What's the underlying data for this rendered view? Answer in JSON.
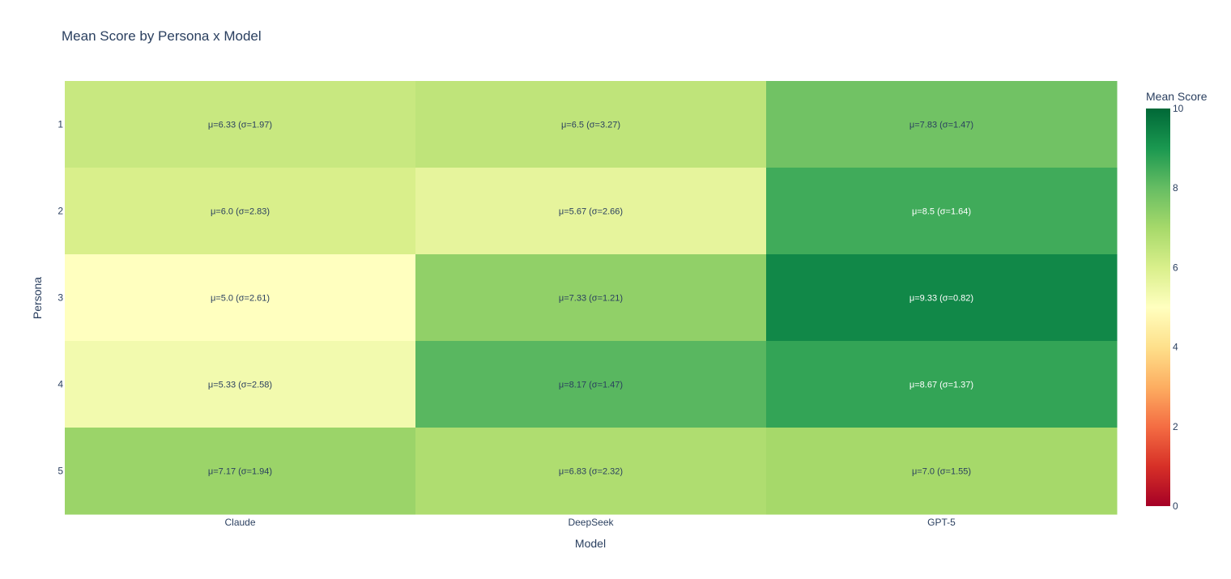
{
  "chart_data": {
    "type": "heatmap",
    "title": "Mean Score by Persona x Model",
    "xlabel": "Model",
    "ylabel": "Persona",
    "x": [
      "Claude",
      "DeepSeek",
      "GPT-5"
    ],
    "y": [
      "1",
      "2",
      "3",
      "4",
      "5"
    ],
    "z": [
      [
        6.33,
        6.5,
        7.83
      ],
      [
        6.0,
        5.67,
        8.5
      ],
      [
        5.0,
        7.33,
        9.33
      ],
      [
        5.33,
        8.17,
        8.67
      ],
      [
        7.17,
        6.83,
        7.0
      ]
    ],
    "cell_text": [
      [
        "μ=6.33 (σ=1.97)",
        "μ=6.5 (σ=3.27)",
        "μ=7.83 (σ=1.47)"
      ],
      [
        "μ=6.0 (σ=2.83)",
        "μ=5.67 (σ=2.66)",
        "μ=8.5 (σ=1.64)"
      ],
      [
        "μ=5.0 (σ=2.61)",
        "μ=7.33 (σ=1.21)",
        "μ=9.33 (σ=0.82)"
      ],
      [
        "μ=5.33 (σ=2.58)",
        "μ=8.17 (σ=1.47)",
        "μ=8.67 (σ=1.37)"
      ],
      [
        "μ=7.17 (σ=1.94)",
        "μ=6.83 (σ=2.32)",
        "μ=7.0 (σ=1.55)"
      ]
    ],
    "zmin": 0,
    "zmax": 10,
    "colorscale": "RdYlGn",
    "colorbar": {
      "title": "Mean Score",
      "ticks": [
        "0",
        "2",
        "4",
        "6",
        "8",
        "10"
      ]
    }
  }
}
